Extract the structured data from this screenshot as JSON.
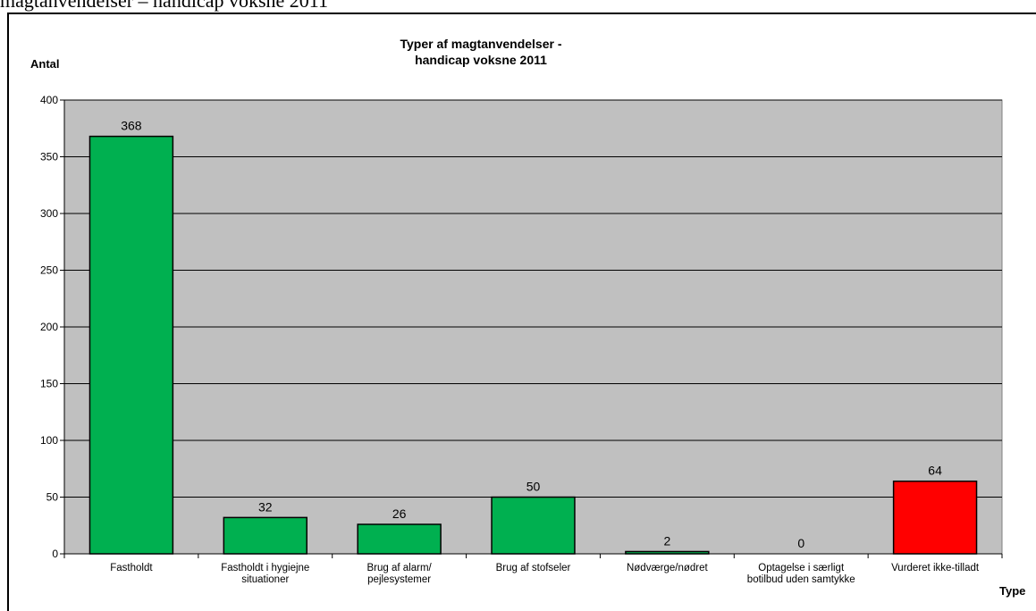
{
  "document": {
    "heading": "magtanvendelser – handicap voksne 2011"
  },
  "chart_data": {
    "type": "bar",
    "title_lines": [
      "Typer af magtanvendelser -",
      "handicap voksne 2011"
    ],
    "ylabel": "Antal",
    "xlabel": "Type",
    "ylim": [
      0,
      400
    ],
    "yticks": [
      0,
      50,
      100,
      150,
      200,
      250,
      300,
      350,
      400
    ],
    "categories": [
      [
        "Fastholdt"
      ],
      [
        "Fastholdt i hygiejne",
        "situationer"
      ],
      [
        "Brug af alarm/",
        "pejlesystemer"
      ],
      [
        "Brug af stofseler"
      ],
      [
        "Nødværge/nødret"
      ],
      [
        "Optagelse i særligt",
        "botilbud uden samtykke"
      ],
      [
        "Vurderet ikke-tilladt"
      ]
    ],
    "values": [
      368,
      32,
      26,
      50,
      2,
      0,
      64
    ],
    "bar_colors": [
      "#00b050",
      "#00b050",
      "#00b050",
      "#00b050",
      "#00b050",
      "#00b050",
      "#ff0000"
    ],
    "plot_background": "#c0c0c0",
    "grid": true,
    "legend": "none"
  }
}
